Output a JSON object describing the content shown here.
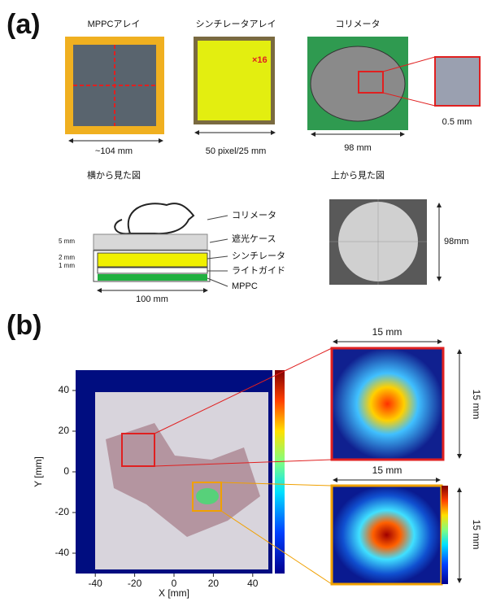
{
  "panel_a": {
    "label": "(a)",
    "photos": [
      {
        "title": "MPPCアレイ",
        "size": "~104 mm"
      },
      {
        "title": "シンチレータアレイ",
        "note": "×16",
        "size": "50 pixel/25 mm"
      },
      {
        "title": "コリメータ",
        "size": "98 mm",
        "zoom_size": "0.5 mm"
      }
    ],
    "side_view": {
      "title": "横から見た図",
      "parts": [
        "コリメータ",
        "遮光ケース",
        "シンチレータ",
        "ライトガイド",
        "MPPC"
      ],
      "heights": [
        "5 mm",
        "2 mm",
        "1 mm"
      ],
      "width": "100 mm"
    },
    "top_view": {
      "title": "上から見た図",
      "size": "98mm"
    }
  },
  "panel_b": {
    "label": "(b)",
    "xlabel": "X [mm]",
    "ylabel": "Y [mm]",
    "xlim": [
      -50,
      50
    ],
    "ylim": [
      -50,
      50
    ],
    "xticks": [
      -40,
      -20,
      0,
      20,
      40
    ],
    "yticks": [
      40,
      20,
      0,
      -20,
      -40
    ],
    "zooms": [
      {
        "width": "15 mm",
        "height": "15 mm"
      },
      {
        "width": "15 mm",
        "height": "15 mm"
      }
    ]
  }
}
